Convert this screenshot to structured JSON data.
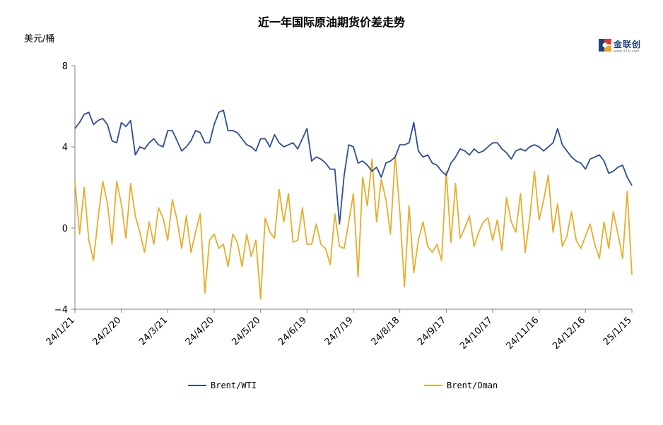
{
  "chart_data": {
    "type": "line",
    "title": "近一年国际原油期货价差走势",
    "ylabel": "美元/桶",
    "ylim": [
      -4,
      8
    ],
    "yticks": [
      "8",
      "4",
      "0",
      "−4"
    ],
    "ytick_values": [
      8,
      4,
      0,
      -4
    ],
    "xlim": [
      "2024-01-21",
      "2025-01-15"
    ],
    "xtick_labels": [
      "24/1/21",
      "24/2/20",
      "24/3/21",
      "24/4/20",
      "24/5/20",
      "24/6/19",
      "24/7/19",
      "24/8/18",
      "24/9/17",
      "24/10/17",
      "24/11/16",
      "24/12/16",
      "25/1/15"
    ],
    "xtick_dates": [
      "2024-01-21",
      "2024-02-20",
      "2024-03-21",
      "2024-04-20",
      "2024-05-20",
      "2024-06-19",
      "2024-07-19",
      "2024-08-18",
      "2024-09-17",
      "2024-10-17",
      "2024-11-16",
      "2024-12-16",
      "2025-01-15"
    ],
    "series": [
      {
        "name": "Brent/WTI",
        "color": "#2b4c9b",
        "x": [
          "2024-01-21",
          "2024-01-24",
          "2024-01-27",
          "2024-01-30",
          "2024-02-02",
          "2024-02-05",
          "2024-02-08",
          "2024-02-11",
          "2024-02-14",
          "2024-02-17",
          "2024-02-20",
          "2024-02-23",
          "2024-02-26",
          "2024-02-29",
          "2024-03-03",
          "2024-03-06",
          "2024-03-09",
          "2024-03-12",
          "2024-03-15",
          "2024-03-18",
          "2024-03-21",
          "2024-03-24",
          "2024-03-27",
          "2024-03-30",
          "2024-04-02",
          "2024-04-05",
          "2024-04-08",
          "2024-04-11",
          "2024-04-14",
          "2024-04-17",
          "2024-04-20",
          "2024-04-23",
          "2024-04-26",
          "2024-04-29",
          "2024-05-02",
          "2024-05-05",
          "2024-05-08",
          "2024-05-11",
          "2024-05-14",
          "2024-05-17",
          "2024-05-20",
          "2024-05-23",
          "2024-05-26",
          "2024-05-29",
          "2024-06-01",
          "2024-06-04",
          "2024-06-07",
          "2024-06-10",
          "2024-06-13",
          "2024-06-16",
          "2024-06-19",
          "2024-06-22",
          "2024-06-25",
          "2024-06-28",
          "2024-07-01",
          "2024-07-04",
          "2024-07-07",
          "2024-07-10",
          "2024-07-13",
          "2024-07-16",
          "2024-07-19",
          "2024-07-22",
          "2024-07-25",
          "2024-07-28",
          "2024-07-31",
          "2024-08-03",
          "2024-08-06",
          "2024-08-09",
          "2024-08-12",
          "2024-08-15",
          "2024-08-18",
          "2024-08-21",
          "2024-08-24",
          "2024-08-27",
          "2024-08-30",
          "2024-09-02",
          "2024-09-05",
          "2024-09-08",
          "2024-09-11",
          "2024-09-14",
          "2024-09-17",
          "2024-09-20",
          "2024-09-23",
          "2024-09-26",
          "2024-09-29",
          "2024-10-02",
          "2024-10-05",
          "2024-10-08",
          "2024-10-11",
          "2024-10-14",
          "2024-10-17",
          "2024-10-20",
          "2024-10-23",
          "2024-10-26",
          "2024-10-29",
          "2024-11-01",
          "2024-11-04",
          "2024-11-07",
          "2024-11-10",
          "2024-11-13",
          "2024-11-16",
          "2024-11-19",
          "2024-11-22",
          "2024-11-25",
          "2024-11-28",
          "2024-12-01",
          "2024-12-04",
          "2024-12-07",
          "2024-12-10",
          "2024-12-13",
          "2024-12-16",
          "2024-12-19",
          "2024-12-22",
          "2024-12-25",
          "2024-12-28",
          "2024-12-31",
          "2025-01-03",
          "2025-01-06",
          "2025-01-09",
          "2025-01-12",
          "2025-01-15"
        ],
        "values": [
          4.9,
          5.2,
          5.6,
          5.7,
          5.1,
          5.3,
          5.4,
          5.1,
          4.3,
          4.2,
          5.2,
          5.0,
          5.3,
          3.6,
          4.0,
          3.9,
          4.2,
          4.4,
          4.1,
          4.0,
          4.8,
          4.8,
          4.3,
          3.8,
          4.0,
          4.3,
          4.8,
          4.7,
          4.2,
          4.2,
          5.1,
          5.7,
          5.8,
          4.8,
          4.8,
          4.7,
          4.4,
          4.1,
          4.0,
          3.8,
          4.4,
          4.4,
          4.0,
          4.6,
          4.2,
          4.0,
          4.1,
          4.2,
          3.9,
          4.4,
          4.9,
          3.3,
          3.5,
          3.4,
          3.2,
          2.9,
          2.9,
          0.2,
          2.6,
          4.1,
          4.0,
          3.2,
          3.3,
          3.1,
          2.8,
          3.0,
          2.5,
          3.2,
          3.3,
          3.5,
          4.1,
          4.1,
          4.2,
          5.2,
          3.8,
          3.5,
          3.6,
          3.2,
          3.1,
          2.8,
          2.6,
          3.2,
          3.5,
          3.9,
          3.8,
          3.6,
          3.9,
          3.7,
          3.8,
          4.0,
          4.2,
          4.2,
          3.9,
          3.7,
          3.4,
          3.8,
          3.9,
          3.8,
          4.0,
          4.1,
          4.0,
          3.8,
          4.0,
          4.2,
          4.9,
          4.1,
          3.8,
          3.5,
          3.3,
          3.2,
          2.9,
          3.4,
          3.5,
          3.6,
          3.3,
          2.7,
          2.8,
          3.0,
          3.1,
          2.5,
          2.1
        ]
      },
      {
        "name": "Brent/Oman",
        "color": "#e8ad2a",
        "x": [
          "2024-01-21",
          "2024-01-24",
          "2024-01-27",
          "2024-01-30",
          "2024-02-02",
          "2024-02-05",
          "2024-02-08",
          "2024-02-11",
          "2024-02-14",
          "2024-02-17",
          "2024-02-20",
          "2024-02-23",
          "2024-02-26",
          "2024-02-29",
          "2024-03-03",
          "2024-03-06",
          "2024-03-09",
          "2024-03-12",
          "2024-03-15",
          "2024-03-18",
          "2024-03-21",
          "2024-03-24",
          "2024-03-27",
          "2024-03-30",
          "2024-04-02",
          "2024-04-05",
          "2024-04-08",
          "2024-04-11",
          "2024-04-14",
          "2024-04-17",
          "2024-04-20",
          "2024-04-23",
          "2024-04-26",
          "2024-04-29",
          "2024-05-02",
          "2024-05-05",
          "2024-05-08",
          "2024-05-11",
          "2024-05-14",
          "2024-05-17",
          "2024-05-20",
          "2024-05-23",
          "2024-05-26",
          "2024-05-29",
          "2024-06-01",
          "2024-06-04",
          "2024-06-07",
          "2024-06-10",
          "2024-06-13",
          "2024-06-16",
          "2024-06-19",
          "2024-06-22",
          "2024-06-25",
          "2024-06-28",
          "2024-07-01",
          "2024-07-04",
          "2024-07-07",
          "2024-07-10",
          "2024-07-13",
          "2024-07-16",
          "2024-07-19",
          "2024-07-22",
          "2024-07-25",
          "2024-07-28",
          "2024-07-31",
          "2024-08-03",
          "2024-08-06",
          "2024-08-09",
          "2024-08-12",
          "2024-08-15",
          "2024-08-18",
          "2024-08-21",
          "2024-08-24",
          "2024-08-27",
          "2024-08-30",
          "2024-09-02",
          "2024-09-05",
          "2024-09-08",
          "2024-09-11",
          "2024-09-14",
          "2024-09-17",
          "2024-09-20",
          "2024-09-23",
          "2024-09-26",
          "2024-09-29",
          "2024-10-02",
          "2024-10-05",
          "2024-10-08",
          "2024-10-11",
          "2024-10-14",
          "2024-10-17",
          "2024-10-20",
          "2024-10-23",
          "2024-10-26",
          "2024-10-29",
          "2024-11-01",
          "2024-11-04",
          "2024-11-07",
          "2024-11-10",
          "2024-11-13",
          "2024-11-16",
          "2024-11-19",
          "2024-11-22",
          "2024-11-25",
          "2024-11-28",
          "2024-12-01",
          "2024-12-04",
          "2024-12-07",
          "2024-12-10",
          "2024-12-13",
          "2024-12-16",
          "2024-12-19",
          "2024-12-22",
          "2024-12-25",
          "2024-12-28",
          "2024-12-31",
          "2025-01-03",
          "2025-01-06",
          "2025-01-09",
          "2025-01-12",
          "2025-01-15"
        ],
        "values": [
          2.3,
          -0.3,
          2.0,
          -0.6,
          -1.6,
          0.5,
          2.3,
          1.2,
          -0.8,
          2.3,
          1.2,
          -0.5,
          2.2,
          0.6,
          -0.2,
          -1.2,
          0.3,
          -0.8,
          1.0,
          0.5,
          -0.6,
          1.4,
          0.4,
          -1.0,
          0.6,
          -1.2,
          -0.2,
          0.7,
          -3.2,
          -0.6,
          -0.3,
          -1.0,
          -0.8,
          -1.9,
          -0.3,
          -0.7,
          -1.9,
          -0.3,
          -1.4,
          -0.6,
          -3.5,
          0.5,
          -0.2,
          -0.5,
          1.9,
          0.3,
          1.7,
          -0.7,
          -0.6,
          1.0,
          -0.8,
          -0.8,
          0.2,
          -0.8,
          -1.0,
          -1.8,
          0.7,
          -0.9,
          -1.0,
          0.3,
          1.7,
          -2.4,
          2.5,
          1.1,
          3.4,
          0.3,
          2.4,
          1.4,
          -0.3,
          3.6,
          0.8,
          -2.9,
          1.1,
          -2.2,
          -0.6,
          0.3,
          -0.9,
          -1.2,
          -0.8,
          -1.6,
          2.8,
          -0.7,
          2.2,
          -0.5,
          0.0,
          0.6,
          -0.9,
          -0.2,
          0.3,
          0.5,
          -0.6,
          0.4,
          -1.1,
          1.5,
          0.3,
          -0.2,
          1.7,
          -1.2,
          0.5,
          2.8,
          0.4,
          1.4,
          2.6,
          -0.2,
          1.2,
          -0.9,
          -0.4,
          0.8,
          -0.6,
          -1.0,
          -0.4,
          0.2,
          -0.8,
          -1.5,
          0.3,
          -1.0,
          0.8,
          -0.3,
          -1.5,
          1.8,
          -2.3
        ]
      }
    ],
    "legend_position": "bottom",
    "grid": false
  },
  "logo": {
    "brand": "金联创",
    "site": "www.315i.com"
  }
}
